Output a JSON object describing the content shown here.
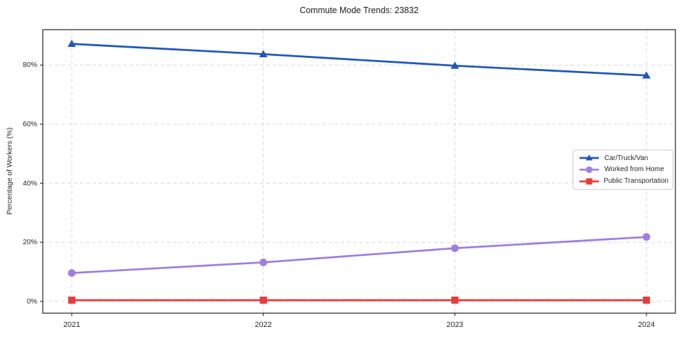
{
  "chart_data": {
    "type": "line",
    "title": "Commute Mode Trends: 23832",
    "xlabel": "",
    "ylabel": "Percentage of Workers (%)",
    "categories": [
      "2021",
      "2022",
      "2023",
      "2024"
    ],
    "series": [
      {
        "name": "Car/Truck/Van",
        "values": [
          87.2,
          83.7,
          79.8,
          76.5
        ],
        "color": "#2257b8",
        "marker": "triangle"
      },
      {
        "name": "Worked from Home",
        "values": [
          9.6,
          13.2,
          18.0,
          21.8
        ],
        "color": "#9f7fdd",
        "marker": "circle"
      },
      {
        "name": "Public Transportation",
        "values": [
          0.4,
          0.4,
          0.4,
          0.4
        ],
        "color": "#e53d3d",
        "marker": "square"
      }
    ],
    "yticks": [
      "0%",
      "20%",
      "40%",
      "60%",
      "80%"
    ],
    "ytick_values": [
      0,
      20,
      40,
      60,
      80
    ],
    "ylim": [
      -4,
      92
    ],
    "grid": true,
    "grid_color": "#d8d8d8",
    "spine_color": "#2e2e2e",
    "legend_position": "center-right"
  }
}
